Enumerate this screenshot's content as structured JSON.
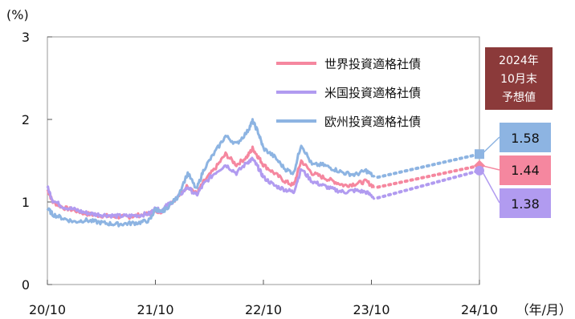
{
  "chart_data": {
    "type": "line",
    "ylabel": "(%)",
    "xunit": "（年/月）",
    "ylim": [
      0,
      3
    ],
    "yticks": [
      0,
      1,
      2,
      3
    ],
    "xticks": [
      "20/10",
      "21/10",
      "22/10",
      "23/10",
      "24/10"
    ],
    "forecast_label": [
      "2024年",
      "10月末",
      "予想値"
    ],
    "forecast_color": "#8b3a3a",
    "series": [
      {
        "name": "世界投資適格社債",
        "color": "#f5879f",
        "forecast": 1.44,
        "forecast_label": "1.44",
        "points": [
          [
            0,
            1.15
          ],
          [
            0.05,
            1.0
          ],
          [
            0.15,
            0.93
          ],
          [
            0.25,
            0.9
          ],
          [
            0.35,
            0.86
          ],
          [
            0.45,
            0.84
          ],
          [
            0.55,
            0.83
          ],
          [
            0.65,
            0.82
          ],
          [
            0.75,
            0.82
          ],
          [
            0.85,
            0.84
          ],
          [
            0.95,
            0.86
          ],
          [
            1.0,
            0.9
          ],
          [
            1.05,
            0.88
          ],
          [
            1.1,
            0.95
          ],
          [
            1.2,
            1.05
          ],
          [
            1.3,
            1.2
          ],
          [
            1.38,
            1.1
          ],
          [
            1.45,
            1.25
          ],
          [
            1.55,
            1.4
          ],
          [
            1.65,
            1.58
          ],
          [
            1.75,
            1.45
          ],
          [
            1.85,
            1.55
          ],
          [
            1.9,
            1.65
          ],
          [
            1.95,
            1.55
          ],
          [
            2.0,
            1.45
          ],
          [
            2.1,
            1.35
          ],
          [
            2.2,
            1.25
          ],
          [
            2.28,
            1.2
          ],
          [
            2.35,
            1.5
          ],
          [
            2.45,
            1.35
          ],
          [
            2.55,
            1.3
          ],
          [
            2.65,
            1.25
          ],
          [
            2.75,
            1.2
          ],
          [
            2.85,
            1.22
          ],
          [
            2.95,
            1.25
          ],
          [
            3.03,
            1.18
          ]
        ]
      },
      {
        "name": "米国投資適格社債",
        "color": "#b19bf0",
        "forecast": 1.38,
        "forecast_label": "1.38",
        "points": [
          [
            0,
            1.18
          ],
          [
            0.05,
            1.02
          ],
          [
            0.15,
            0.94
          ],
          [
            0.25,
            0.91
          ],
          [
            0.35,
            0.87
          ],
          [
            0.45,
            0.85
          ],
          [
            0.55,
            0.84
          ],
          [
            0.65,
            0.83
          ],
          [
            0.75,
            0.83
          ],
          [
            0.85,
            0.84
          ],
          [
            0.95,
            0.86
          ],
          [
            1.0,
            0.92
          ],
          [
            1.05,
            0.89
          ],
          [
            1.1,
            0.95
          ],
          [
            1.2,
            1.05
          ],
          [
            1.3,
            1.18
          ],
          [
            1.38,
            1.08
          ],
          [
            1.45,
            1.22
          ],
          [
            1.55,
            1.35
          ],
          [
            1.65,
            1.45
          ],
          [
            1.75,
            1.35
          ],
          [
            1.85,
            1.48
          ],
          [
            1.9,
            1.52
          ],
          [
            1.95,
            1.42
          ],
          [
            2.0,
            1.3
          ],
          [
            2.1,
            1.2
          ],
          [
            2.2,
            1.15
          ],
          [
            2.28,
            1.12
          ],
          [
            2.35,
            1.4
          ],
          [
            2.45,
            1.25
          ],
          [
            2.55,
            1.2
          ],
          [
            2.65,
            1.15
          ],
          [
            2.75,
            1.12
          ],
          [
            2.85,
            1.14
          ],
          [
            2.95,
            1.12
          ],
          [
            3.03,
            1.05
          ]
        ]
      },
      {
        "name": "欧州投資適格社債",
        "color": "#8db4e2",
        "forecast": 1.58,
        "forecast_label": "1.58",
        "points": [
          [
            0,
            0.92
          ],
          [
            0.05,
            0.85
          ],
          [
            0.15,
            0.8
          ],
          [
            0.25,
            0.76
          ],
          [
            0.35,
            0.78
          ],
          [
            0.45,
            0.76
          ],
          [
            0.55,
            0.74
          ],
          [
            0.65,
            0.73
          ],
          [
            0.75,
            0.74
          ],
          [
            0.85,
            0.75
          ],
          [
            0.95,
            0.78
          ],
          [
            1.0,
            0.92
          ],
          [
            1.05,
            0.87
          ],
          [
            1.1,
            0.92
          ],
          [
            1.2,
            1.05
          ],
          [
            1.3,
            1.35
          ],
          [
            1.38,
            1.15
          ],
          [
            1.45,
            1.4
          ],
          [
            1.55,
            1.6
          ],
          [
            1.65,
            1.8
          ],
          [
            1.75,
            1.7
          ],
          [
            1.85,
            1.85
          ],
          [
            1.9,
            1.98
          ],
          [
            1.95,
            1.85
          ],
          [
            2.0,
            1.65
          ],
          [
            2.1,
            1.55
          ],
          [
            2.2,
            1.4
          ],
          [
            2.28,
            1.35
          ],
          [
            2.35,
            1.7
          ],
          [
            2.45,
            1.45
          ],
          [
            2.55,
            1.45
          ],
          [
            2.65,
            1.4
          ],
          [
            2.75,
            1.35
          ],
          [
            2.85,
            1.33
          ],
          [
            2.95,
            1.38
          ],
          [
            3.03,
            1.3
          ]
        ]
      }
    ]
  }
}
